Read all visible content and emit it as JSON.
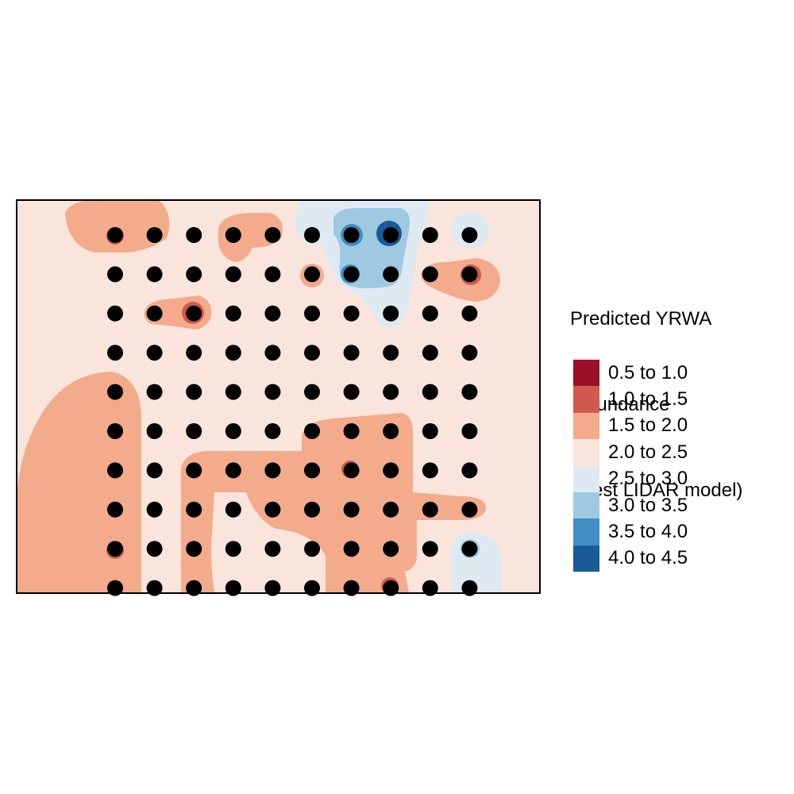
{
  "legend": {
    "title_lines": [
      "Predicted YRWA",
      " abundance",
      " (best LIDAR model)"
    ],
    "items": [
      {
        "label": "0.5 to 1.0",
        "color": "#9a1127"
      },
      {
        "label": "1.0 to 1.5",
        "color": "#d25a4c"
      },
      {
        "label": "1.5 to 2.0",
        "color": "#f3ab8b"
      },
      {
        "label": "2.0 to 2.5",
        "color": "#fae5dd"
      },
      {
        "label": "2.5 to 3.0",
        "color": "#dfe9f2"
      },
      {
        "label": "3.0 to 3.5",
        "color": "#9ec9e1"
      },
      {
        "label": "3.5 to 4.0",
        "color": "#408ec3"
      },
      {
        "label": "4.0 to 4.5",
        "color": "#195a99"
      }
    ]
  },
  "map": {
    "background_class": "2.0 to 2.5",
    "point_color": "#000000",
    "grid_columns": 10,
    "grid_rows": 10
  }
}
